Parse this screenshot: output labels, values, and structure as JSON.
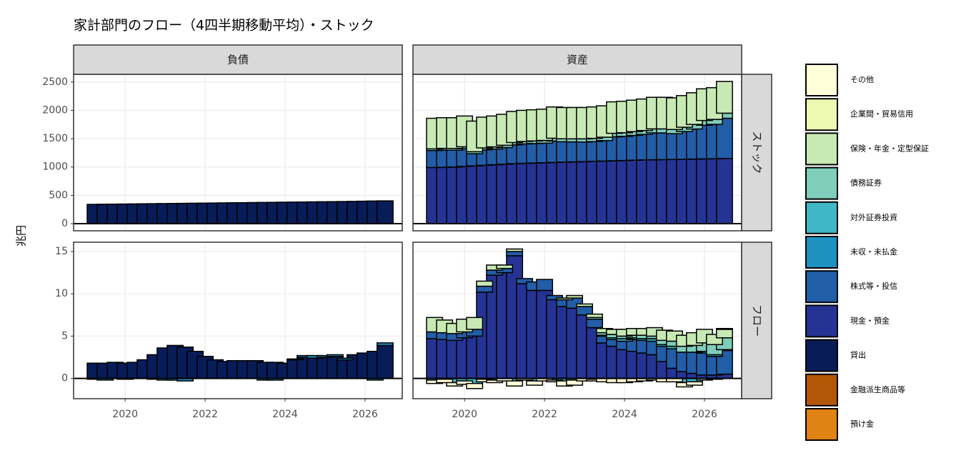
{
  "chart_data": {
    "type": "bar",
    "stacked": true,
    "title": "家計部門のフロー（4四半期移動平均）・ストック",
    "y_label": "兆円",
    "x": [
      2019.25,
      2019.5,
      2019.75,
      2020,
      2020.25,
      2020.5,
      2020.75,
      2021,
      2021.25,
      2021.5,
      2021.75,
      2022,
      2022.25,
      2022.5,
      2022.75,
      2023,
      2023.25,
      2023.5,
      2023.75,
      2024,
      2024.25,
      2024.5,
      2024.75,
      2025,
      2025.25,
      2025.5,
      2025.75,
      2026,
      2026.25,
      2026.5
    ],
    "xlim": [
      2018.71,
      2026.93
    ],
    "xticks": [
      2020,
      2022,
      2024,
      2026
    ],
    "grid": true,
    "legend": [
      {
        "name": "その他",
        "color": "#ffffd9"
      },
      {
        "name": "企業間・貿易信用",
        "color": "#edf8b1"
      },
      {
        "name": "保険・年金・定型保証",
        "color": "#c7e9b4"
      },
      {
        "name": "債務証券",
        "color": "#7fcdbb"
      },
      {
        "name": "対外証券投資",
        "color": "#41b6c4"
      },
      {
        "name": "未収・未払金",
        "color": "#1d91c0"
      },
      {
        "name": "株式等・投信",
        "color": "#225ea8"
      },
      {
        "name": "現金・預金",
        "color": "#253494"
      },
      {
        "name": "貸出",
        "color": "#081d58"
      },
      {
        "name": "金融派生商品等",
        "color": "#b35806"
      },
      {
        "name": "預け金",
        "color": "#e08214"
      }
    ],
    "facet_columns": [
      "負債",
      "資産"
    ],
    "facet_rows": [
      {
        "label": "ストック",
        "ylim": [
          -126,
          2636
        ],
        "yticks": [
          0,
          500,
          1000,
          1500,
          2000,
          2500
        ],
        "panels": [
          {
            "series": [
              {
                "name": "貸出",
                "values": [
                  340,
                  342,
                  344,
                  346,
                  348,
                  350,
                  352,
                  354,
                  356,
                  358,
                  360,
                  362,
                  364,
                  366,
                  368,
                  370,
                  372,
                  374,
                  376,
                  378,
                  380,
                  382,
                  384,
                  386,
                  388,
                  390,
                  393,
                  396,
                  399,
                  402
                ]
              }
            ]
          },
          {
            "series": [
              {
                "name": "現金・預金",
                "values": [
                  990,
                  995,
                  1000,
                  1010,
                  1020,
                  1030,
                  1040,
                  1050,
                  1060,
                  1065,
                  1070,
                  1075,
                  1080,
                  1085,
                  1090,
                  1095,
                  1100,
                  1105,
                  1110,
                  1115,
                  1120,
                  1125,
                  1128,
                  1130,
                  1133,
                  1136,
                  1140,
                  1143,
                  1146,
                  1150
                ]
              },
              {
                "name": "株式等・投信",
                "values": [
                  300,
                  303,
                  296,
                  313,
                  215,
                  272,
                  278,
                  294,
                  330,
                  342,
                  344,
                  346,
                  378,
                  361,
                  353,
                  346,
                  348,
                  361,
                  423,
                  426,
                  438,
                  451,
                  475,
                  471,
                  455,
                  490,
                  531,
                  594,
                  607,
                  710
                ]
              },
              {
                "name": "債務証券",
                "values": [
                  30,
                  31,
                  32,
                  34,
                  35,
                  36,
                  38,
                  40,
                  42,
                  44,
                  46,
                  48,
                  50,
                  52,
                  54,
                  56,
                  58,
                  60,
                  62,
                  64,
                  66,
                  68,
                  70,
                  72,
                  74,
                  76,
                  80,
                  84,
                  87,
                  90
                ]
              },
              {
                "name": "保険・年金・定型保証",
                "values": [
                  540,
                  541,
                  542,
                  543,
                  540,
                  542,
                  544,
                  546,
                  548,
                  549,
                  550,
                  551,
                  552,
                  552,
                  553,
                  553,
                  554,
                  554,
                  555,
                  555,
                  556,
                  556,
                  557,
                  557,
                  558,
                  558,
                  559,
                  559,
                  560,
                  560
                ]
              }
            ]
          }
        ]
      },
      {
        "label": "フロー",
        "ylim": [
          -2.4,
          16.1
        ],
        "yticks": [
          0,
          5,
          10,
          15
        ],
        "panels": [
          {
            "series": [
              {
                "name": "貸出",
                "values": [
                  1.8,
                  1.8,
                  1.9,
                  1.8,
                  1.9,
                  2.2,
                  2.8,
                  3.6,
                  3.9,
                  3.7,
                  3.2,
                  2.6,
                  2.2,
                  2.0,
                  2.1,
                  2.1,
                  2.1,
                  1.9,
                  1.9,
                  1.8,
                  2.2,
                  2.5,
                  2.4,
                  2.5,
                  2.6,
                  2.2,
                  2.8,
                  3.0,
                  3.2,
                  3.9
                ]
              },
              {
                "name": "未収・未払金",
                "values": [
                  -0.1,
                  -0.2,
                  0,
                  -0.1,
                  0,
                  0,
                  -0.1,
                  -0.2,
                  -0.2,
                  -0.3,
                  0,
                  0,
                  0,
                  0,
                  0,
                  0,
                  0,
                  -0.2,
                  -0.2,
                  0,
                  0.1,
                  0.2,
                  0.3,
                  0.2,
                  0.2,
                  0.2,
                  0,
                  0,
                  -0.2,
                  0.3
                ]
              }
            ]
          },
          {
            "series": [
              {
                "name": "現金・預金",
                "values": [
                  4.7,
                  4.6,
                  4.5,
                  4.8,
                  5.0,
                  10.2,
                  12.2,
                  12.5,
                  14.5,
                  11.2,
                  10.4,
                  10.4,
                  9.3,
                  8.5,
                  8.3,
                  7.5,
                  6.0,
                  4.2,
                  3.8,
                  3.4,
                  3.2,
                  3.0,
                  2.8,
                  2.0,
                  1.2,
                  0.8,
                  0.6,
                  0.4,
                  0.4,
                  0.5
                ]
              },
              {
                "name": "株式等・投信",
                "values": [
                  0.8,
                  0.8,
                  0.8,
                  0.7,
                  0.8,
                  0.7,
                  0.6,
                  0.5,
                  0.5,
                  0.6,
                  1.0,
                  1.3,
                  0.5,
                  0.8,
                  1.2,
                  1.0,
                  1.0,
                  0.8,
                  0.8,
                  1.0,
                  1.4,
                  1.5,
                  1.6,
                  1.8,
                  2.3,
                  2.3,
                  2.5,
                  2.6,
                  2.2,
                  2.8
                ]
              },
              {
                "name": "対外証券投資",
                "values": [
                  -0.2,
                  -0.1,
                  -0.5,
                  -0.3,
                  -0.6,
                  -0.1,
                  -0.2,
                  0,
                  -0.3,
                  0,
                  -0.3,
                  0,
                  -0.2,
                  -0.3,
                  -0.2,
                  0,
                  -0.1,
                  0.1,
                  0.2,
                  0.3,
                  0.2,
                  0.2,
                  0.3,
                  0.2,
                  0.3,
                  -0.5,
                  -0.4,
                  0.2,
                  0.2,
                  0.1
                ]
              },
              {
                "name": "債務証券",
                "values": [
                  0,
                  0,
                  0,
                  0,
                  0,
                  0,
                  0,
                  0,
                  0,
                  0,
                  0,
                  0,
                  0,
                  0,
                  0,
                  0,
                  0.2,
                  0.3,
                  0.4,
                  0.3,
                  0.3,
                  0.4,
                  0.3,
                  0.5,
                  0.6,
                  0.7,
                  0.8,
                  1.0,
                  1.2,
                  1.4
                ]
              },
              {
                "name": "保険・年金・定型保証",
                "values": [
                  1.7,
                  1.5,
                  1.2,
                  1.5,
                  1.4,
                  0.6,
                  0.6,
                  0.4,
                  0.3,
                  0,
                  0,
                  0,
                  0,
                  0.2,
                  0.3,
                  0.3,
                  0.4,
                  0.5,
                  0.6,
                  0.8,
                  0.8,
                  0.8,
                  1.0,
                  1.2,
                  1.2,
                  1.3,
                  1.5,
                  1.6,
                  1.2,
                  1.0
                ]
              },
              {
                "name": "その他",
                "values": [
                  -0.4,
                  -0.4,
                  -0.4,
                  -0.4,
                  -0.6,
                  -0.3,
                  -0.3,
                  -0.3,
                  -0.6,
                  -0.2,
                  -0.5,
                  -0.3,
                  -0.2,
                  -0.6,
                  -0.6,
                  -0.3,
                  -0.2,
                  -0.4,
                  -0.5,
                  -0.5,
                  -0.4,
                  -0.3,
                  -0.2,
                  -0.4,
                  -0.4,
                  -0.5,
                  -0.4,
                  -0.2,
                  -0.1,
                  0.1
                ]
              }
            ]
          }
        ]
      }
    ]
  }
}
